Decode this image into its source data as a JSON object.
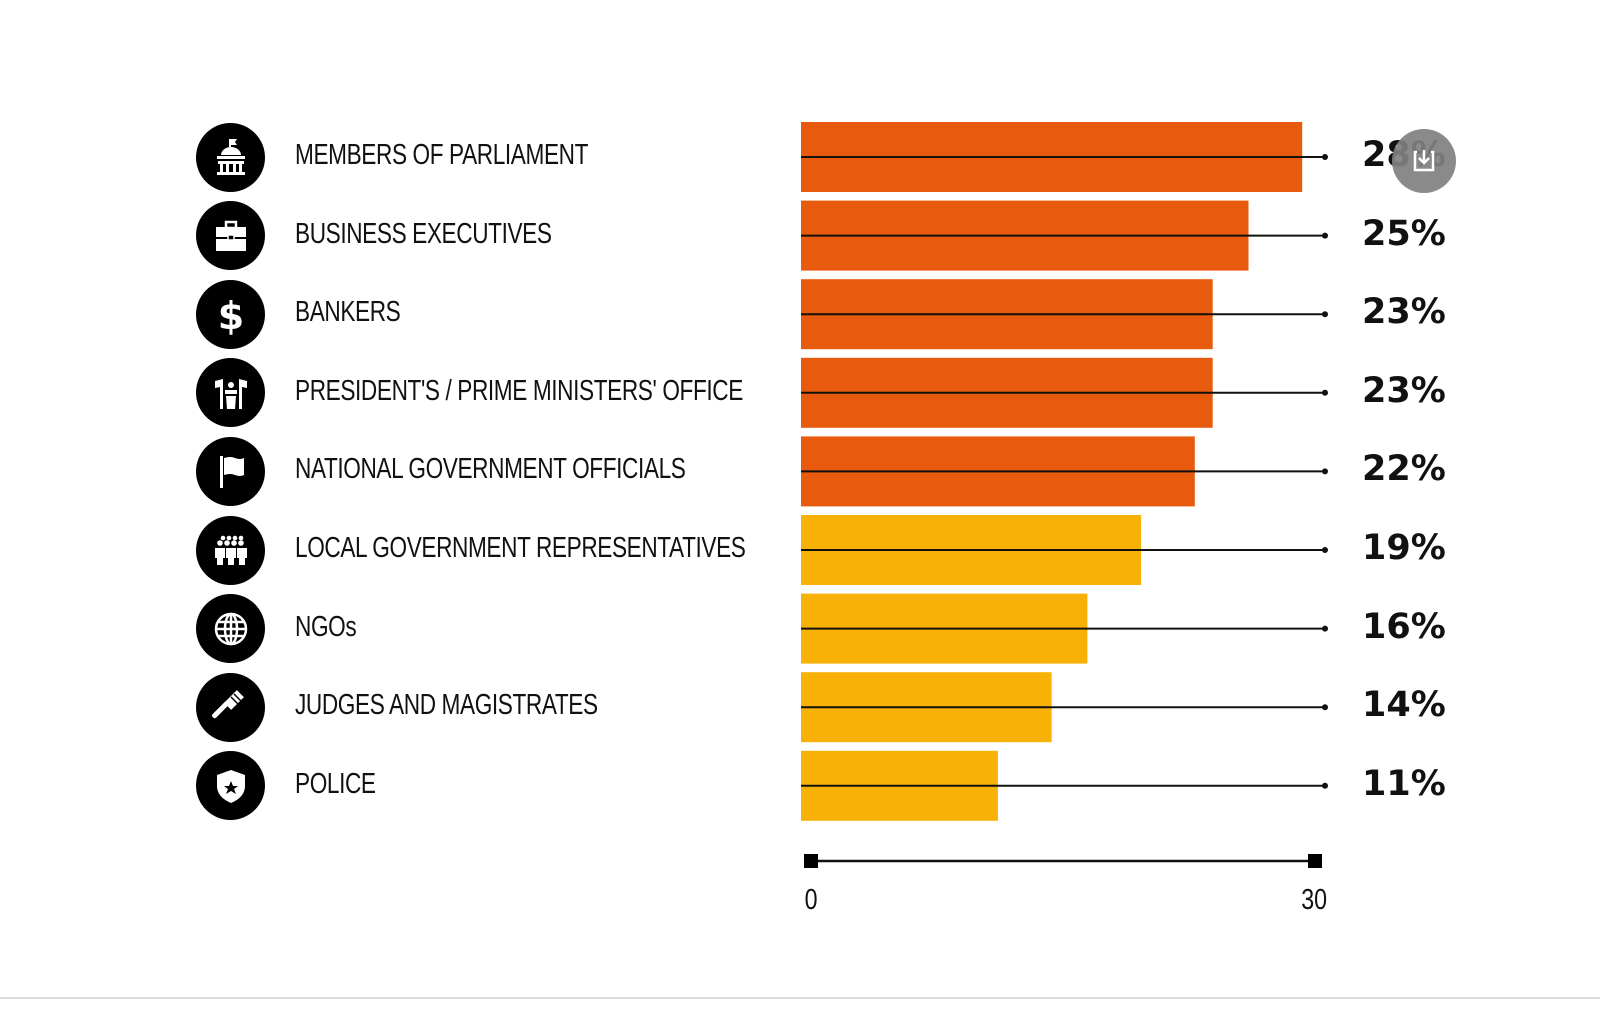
{
  "chart_data": {
    "type": "bar",
    "orientation": "horizontal",
    "title": "",
    "xlabel": "",
    "ylabel": "",
    "xlim": [
      0,
      30
    ],
    "x_ticks": [
      "0",
      "30"
    ],
    "grid": false,
    "legend": null,
    "categories": [
      "MEMBERS OF PARLIAMENT",
      "BUSINESS EXECUTIVES",
      "BANKERS",
      "PRESIDENT'S / PRIME MINISTERS' OFFICE",
      "NATIONAL GOVERNMENT OFFICIALS",
      "LOCAL GOVERNMENT REPRESENTATIVES",
      "NGOs",
      "JUDGES AND MAGISTRATES",
      "POLICE"
    ],
    "values": [
      28,
      25,
      23,
      23,
      22,
      19,
      16,
      14,
      11
    ],
    "value_labels": [
      "28%",
      "25%",
      "23%",
      "23%",
      "22%",
      "19%",
      "16%",
      "14%",
      "11%"
    ],
    "icons": [
      "parliament-building-icon",
      "briefcase-icon",
      "dollar-icon",
      "podium-flags-icon",
      "flag-icon",
      "group-people-icon",
      "globe-icon",
      "gavel-icon",
      "police-badge-icon"
    ],
    "bar_colors": [
      "#E85A0E",
      "#E85A0E",
      "#E85A0E",
      "#E85A0E",
      "#E85A0E",
      "#F8B106",
      "#F8B106",
      "#F8B106",
      "#F8B106"
    ]
  },
  "colors": {
    "high": "#E85A0E",
    "low": "#F8B106",
    "ink": "#111111"
  },
  "controls": {
    "download_icon": "download-icon"
  }
}
